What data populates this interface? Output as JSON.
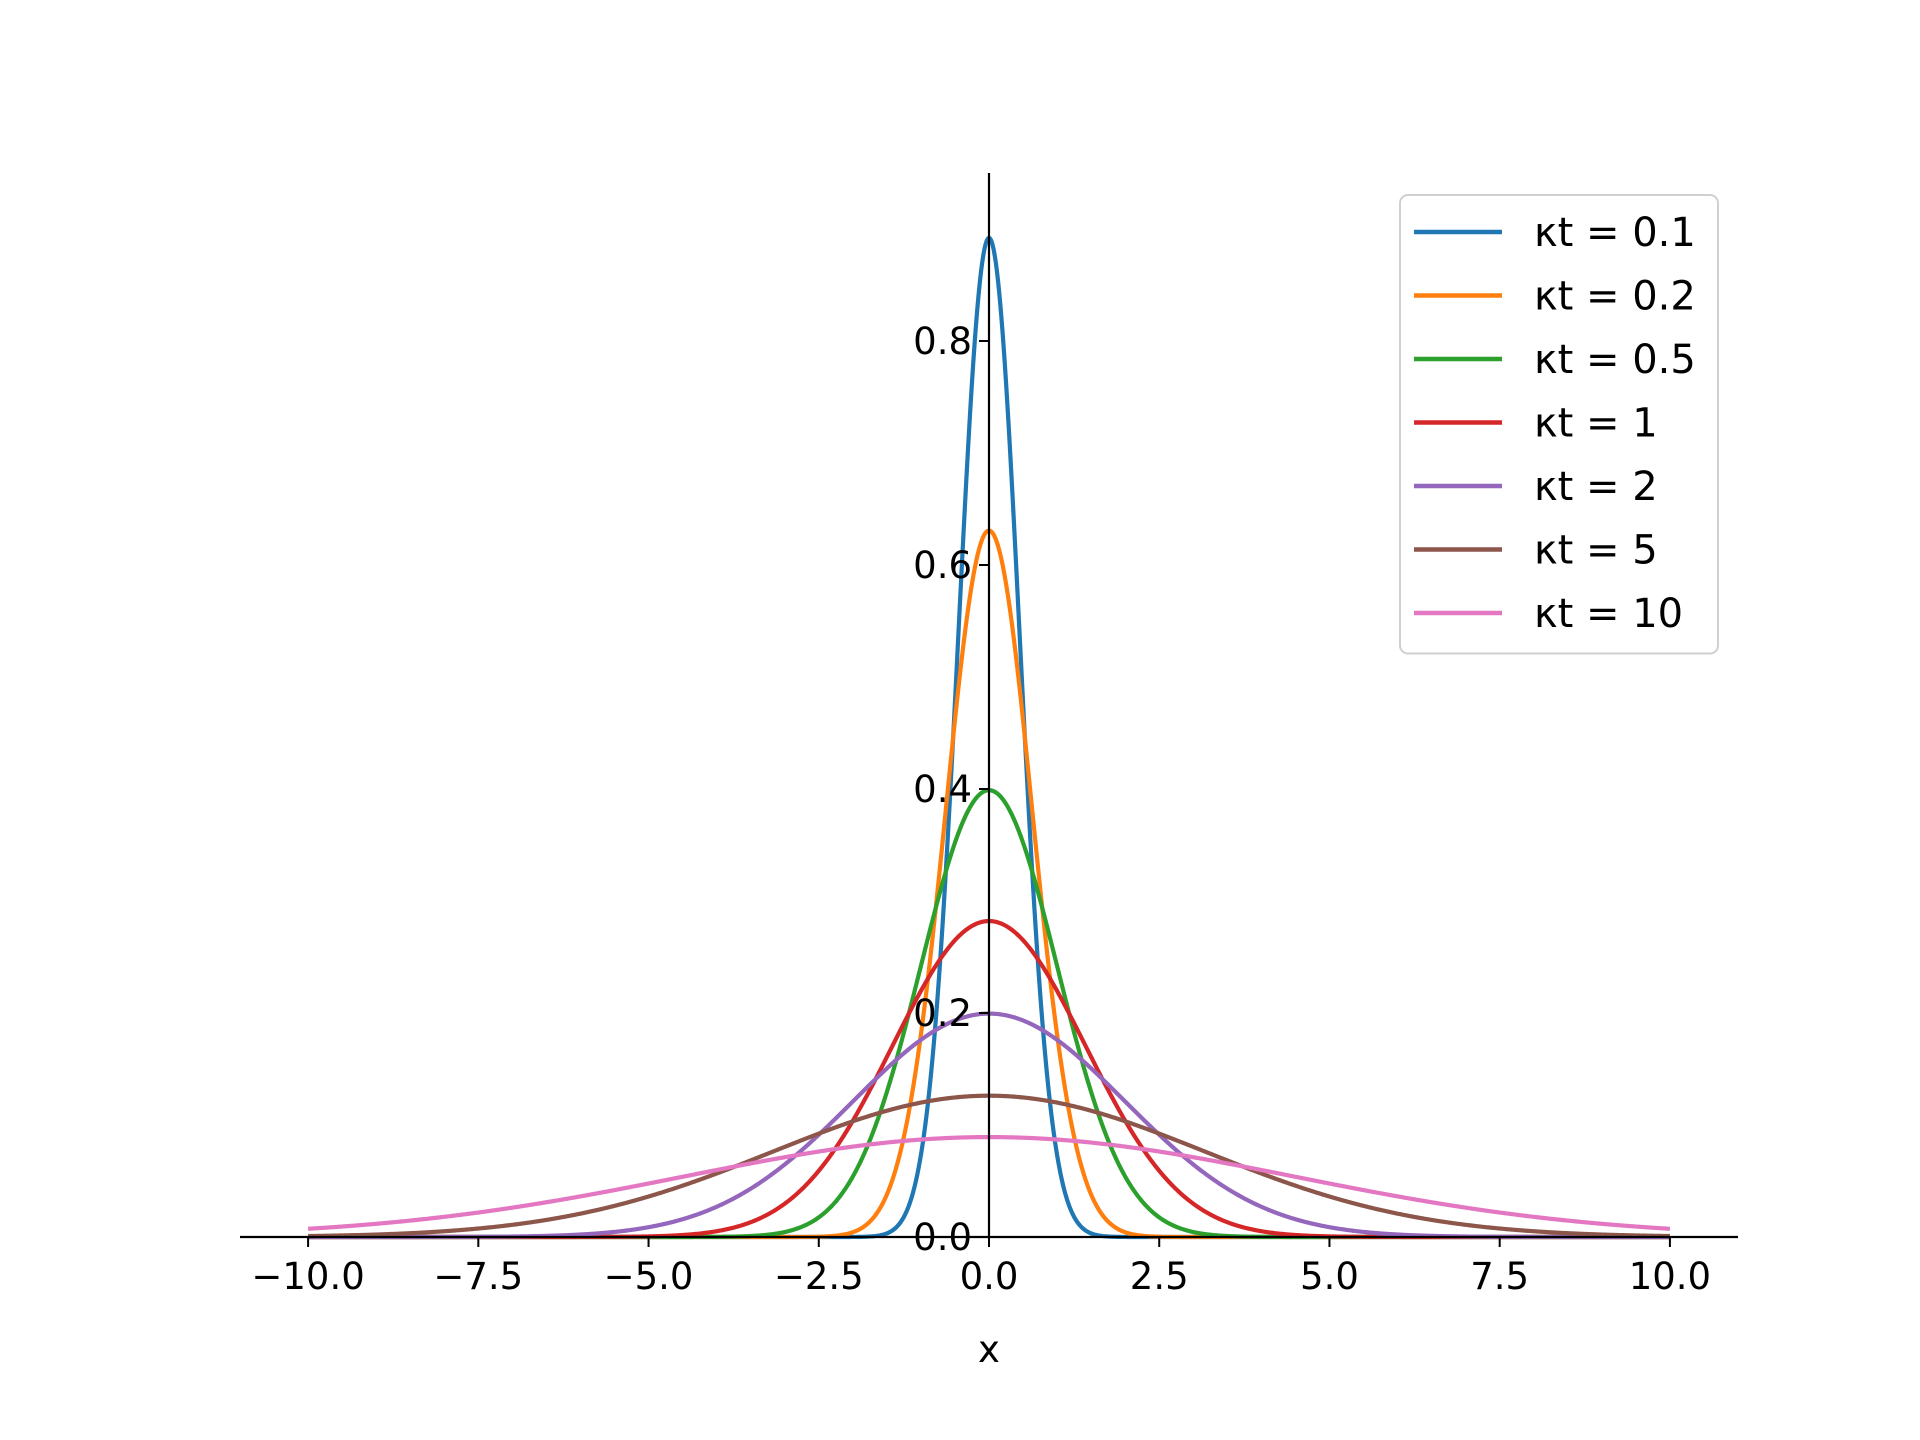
{
  "chart_data": {
    "type": "line",
    "title": "",
    "xlabel": "x",
    "ylabel": "",
    "xlim": [
      -11,
      11
    ],
    "ylim": [
      0,
      0.95
    ],
    "xticks": [
      -10.0,
      -7.5,
      -5.0,
      -2.5,
      0.0,
      2.5,
      5.0,
      7.5,
      10.0
    ],
    "xtick_labels": [
      "−10.0",
      "−7.5",
      "−5.0",
      "−2.5",
      "0.0",
      "2.5",
      "5.0",
      "7.5",
      "10.0"
    ],
    "yticks": [
      0.0,
      0.2,
      0.4,
      0.6,
      0.8
    ],
    "ytick_labels": [
      "0.0",
      "0.2",
      "0.4",
      "0.6",
      "0.8"
    ],
    "x_range": [
      -10,
      10
    ],
    "function": "1/sqrt(4*pi*kt) * exp(-x^2/(4*kt))",
    "grid": false,
    "spines": "centered at origin",
    "legend_position": "top-right",
    "series": [
      {
        "name": "κt = 0.1",
        "kt": 0.1,
        "color": "#1f77b4",
        "peak": 0.892
      },
      {
        "name": "κt = 0.2",
        "kt": 0.2,
        "color": "#ff7f0e",
        "peak": 0.631
      },
      {
        "name": "κt = 0.5",
        "kt": 0.5,
        "color": "#2ca02c",
        "peak": 0.399
      },
      {
        "name": "κt = 1",
        "kt": 1,
        "color": "#d62728",
        "peak": 0.282
      },
      {
        "name": "κt = 2",
        "kt": 2,
        "color": "#9467bd",
        "peak": 0.199
      },
      {
        "name": "κt = 5",
        "kt": 5,
        "color": "#8c564b",
        "peak": 0.126
      },
      {
        "name": "κt = 10",
        "kt": 10,
        "color": "#e377c2",
        "peak": 0.089
      }
    ]
  }
}
